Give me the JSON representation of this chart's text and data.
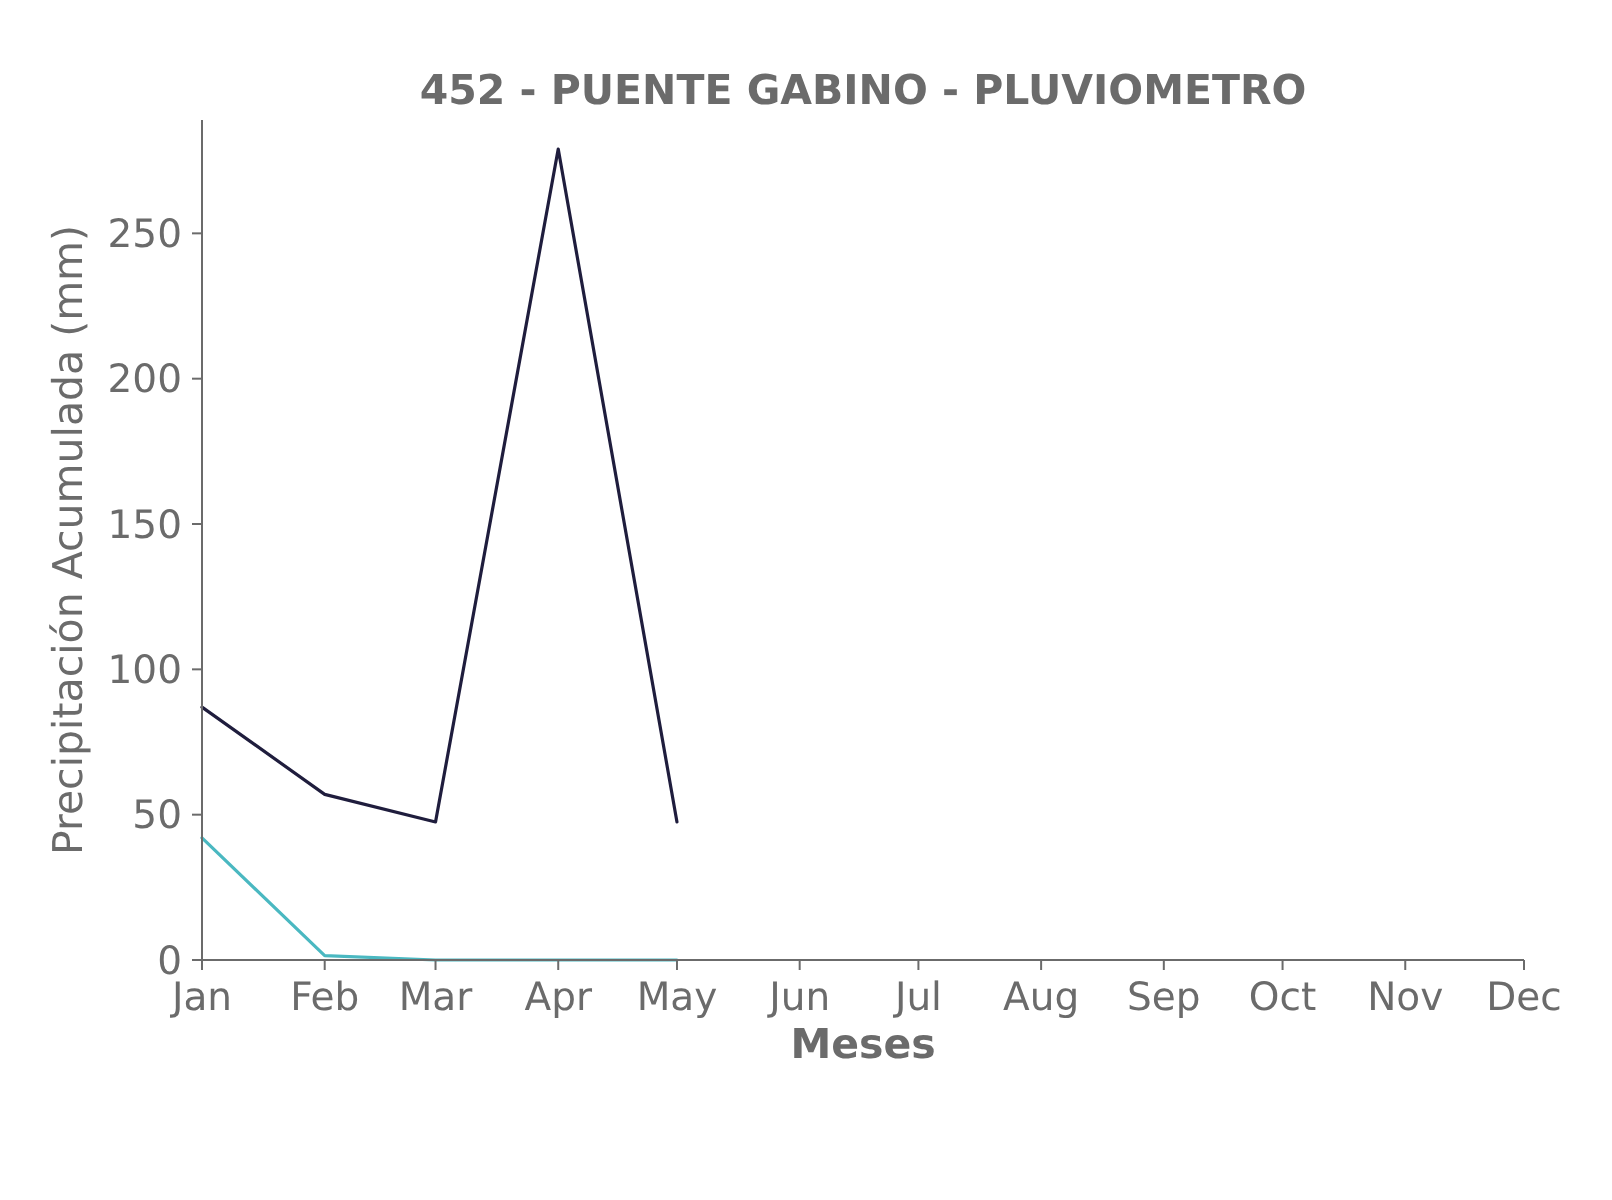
{
  "chart_data": {
    "type": "line",
    "title": "452 - PUENTE GABINO - PLUVIOMETRO",
    "xlabel": "Meses",
    "ylabel": "Precipitación Acumulada (mm)",
    "x": [
      "--01-01",
      "--02-01",
      "--03-01",
      "--04-01",
      "--05-01"
    ],
    "series": [
      {
        "color": "#1f1d3d",
        "values": [
          87,
          57,
          47.5,
          279,
          47.5
        ]
      },
      {
        "color": "#4ab8c1",
        "values": [
          42,
          1.5,
          0,
          0,
          0
        ]
      }
    ],
    "xlim": [
      "--01-01",
      "--12-01"
    ],
    "xticks": [
      {
        "value": "--01-01",
        "label": "Jan"
      },
      {
        "value": "--02-01",
        "label": "Feb"
      },
      {
        "value": "--03-01",
        "label": "Mar"
      },
      {
        "value": "--04-01",
        "label": "Apr"
      },
      {
        "value": "--05-01",
        "label": "May"
      },
      {
        "value": "--06-01",
        "label": "Jun"
      },
      {
        "value": "--07-01",
        "label": "Jul"
      },
      {
        "value": "--08-01",
        "label": "Aug"
      },
      {
        "value": "--09-01",
        "label": "Sep"
      },
      {
        "value": "--10-01",
        "label": "Oct"
      },
      {
        "value": "--11-01",
        "label": "Nov"
      },
      {
        "value": "--12-01",
        "label": "Dec"
      }
    ],
    "ylim": [
      0,
      289
    ],
    "yticks": [
      0,
      50,
      100,
      150,
      200,
      250
    ]
  }
}
